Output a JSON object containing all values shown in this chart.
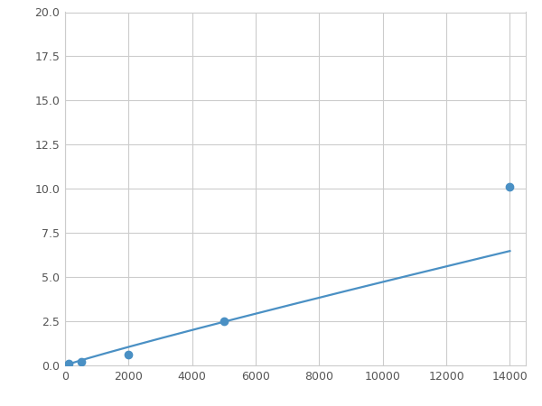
{
  "x": [
    100,
    500,
    2000,
    5000,
    14000
  ],
  "y": [
    0.1,
    0.2,
    0.6,
    2.5,
    10.1
  ],
  "line_color": "#4a90c4",
  "marker_color": "#4a90c4",
  "marker_size": 6,
  "line_width": 1.6,
  "xlim": [
    0,
    14500
  ],
  "ylim": [
    0,
    20.0
  ],
  "xticks": [
    0,
    2000,
    4000,
    6000,
    8000,
    10000,
    12000,
    14000
  ],
  "yticks": [
    0.0,
    2.5,
    5.0,
    7.5,
    10.0,
    12.5,
    15.0,
    17.5,
    20.0
  ],
  "grid_color": "#cccccc",
  "background_color": "#ffffff",
  "figsize": [
    6.0,
    4.5
  ],
  "dpi": 100
}
